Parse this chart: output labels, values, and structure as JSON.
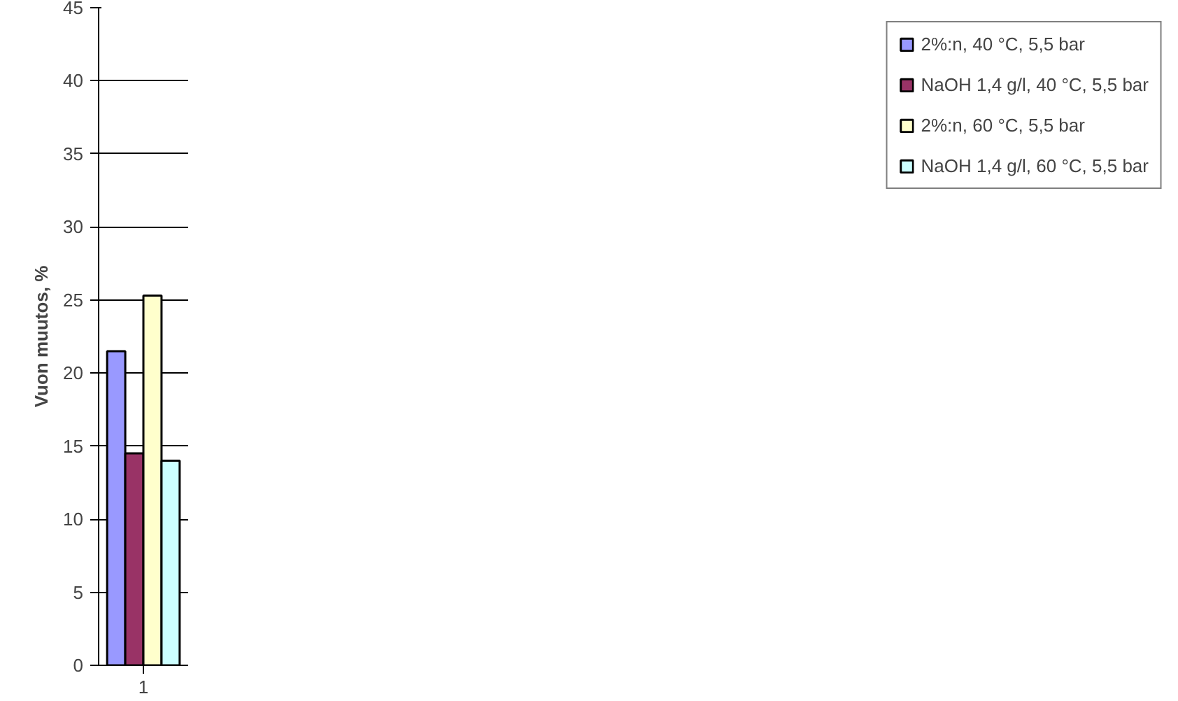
{
  "chart_data": {
    "type": "bar",
    "ylabel": "Vuon muutos, %",
    "categories": [
      "1"
    ],
    "series": [
      {
        "name": "2%:n, 40 °C, 5,5 bar",
        "color": "#9999ff",
        "values": [
          21.5
        ]
      },
      {
        "name": "NaOH 1,4 g/l, 40 °C, 5,5 bar",
        "color": "#993366",
        "values": [
          14.5
        ]
      },
      {
        "name": "2%:n, 60 °C, 5,5 bar",
        "color": "#ffffcc",
        "values": [
          25.3
        ]
      },
      {
        "name": "NaOH 1,4 g/l, 60 °C, 5,5 bar",
        "color": "#ccffff",
        "values": [
          14.0
        ]
      }
    ],
    "ylim": [
      0,
      45
    ],
    "yticks": [
      0,
      5,
      10,
      15,
      20,
      25,
      30,
      35,
      40,
      45
    ],
    "grid": "y",
    "legend": "right"
  }
}
